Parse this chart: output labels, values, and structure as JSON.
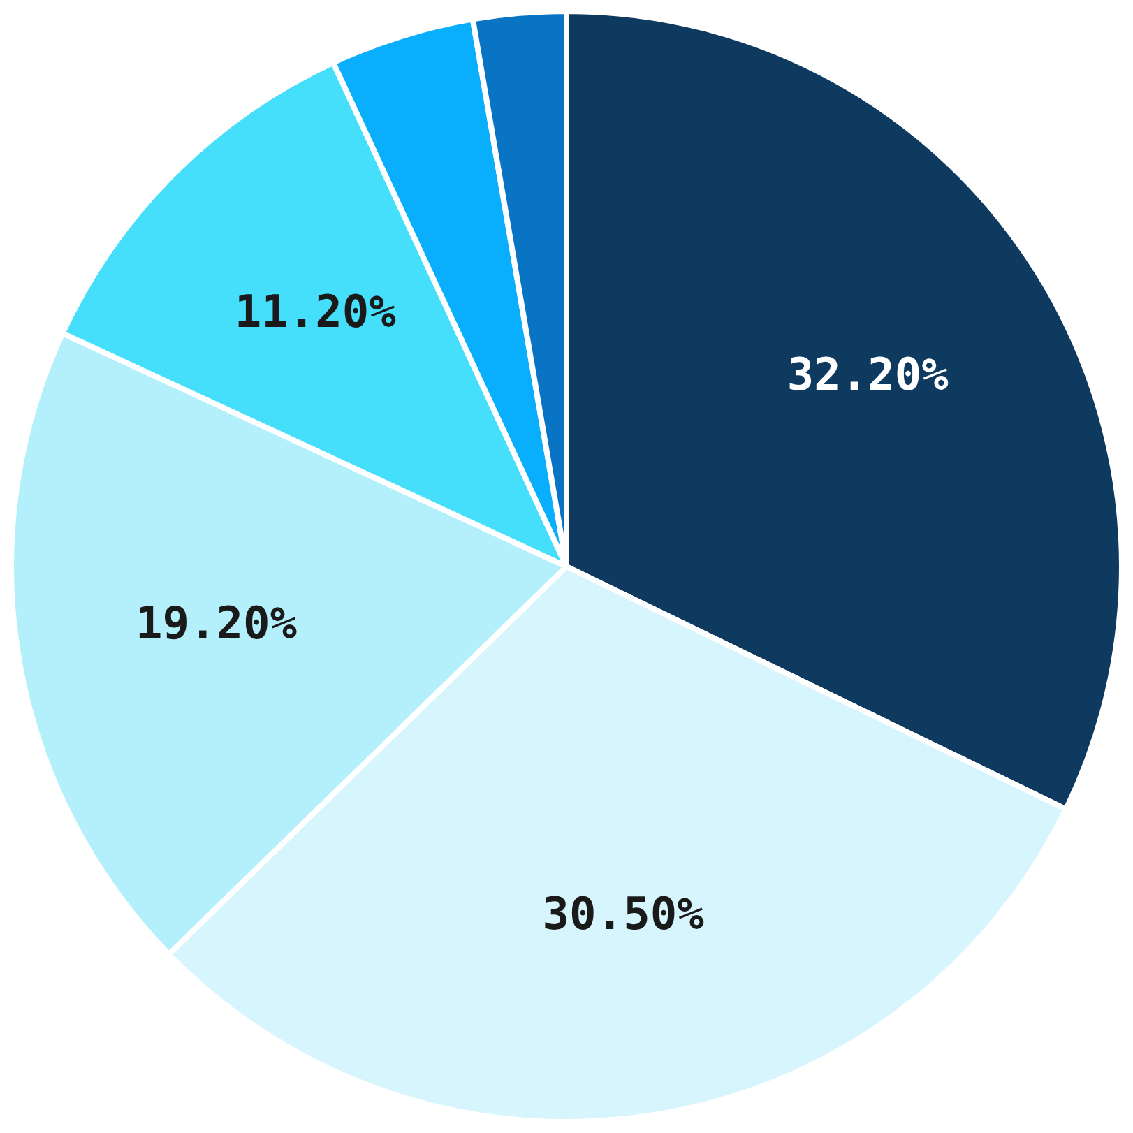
{
  "chart_data": {
    "type": "pie",
    "categories": [
      null,
      null,
      null,
      null,
      null,
      null
    ],
    "values": [
      32.2,
      30.5,
      19.2,
      11.2,
      4.2,
      2.7
    ],
    "colors": [
      "#0f3a5f",
      "#d6f5fd",
      "#b3f0fc",
      "#45dffc",
      "#09aefc",
      "#0a74c4"
    ],
    "value_labels": [
      "32.20%",
      "30.50%",
      "19.20%",
      "11.20%",
      null,
      null
    ],
    "legend": false
  }
}
